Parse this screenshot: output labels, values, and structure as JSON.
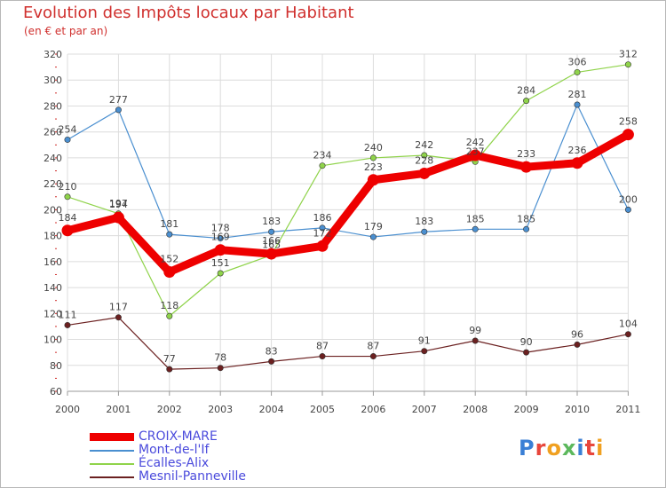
{
  "header": {
    "title": "Evolution des Impôts locaux par Habitant",
    "subtitle": "(en € et par an)"
  },
  "logo": {
    "text": "Proxiti",
    "colors": [
      "#3a7fd5",
      "#e8463c",
      "#f0a020",
      "#5cb85c",
      "#3a7fd5",
      "#e8463c",
      "#f0a020"
    ]
  },
  "chart_data": {
    "type": "line",
    "title": "Evolution des Impôts locaux par Habitant",
    "subtitle": "(en € et par an)",
    "xlabel": "",
    "ylabel": "",
    "x": [
      "2000",
      "2001",
      "2002",
      "2003",
      "2004",
      "2005",
      "2006",
      "2007",
      "2008",
      "2009",
      "2010",
      "2011"
    ],
    "ylim": [
      60,
      320
    ],
    "yticks": [
      60,
      80,
      100,
      120,
      140,
      160,
      180,
      200,
      220,
      240,
      260,
      280,
      300,
      320
    ],
    "grid": true,
    "legend_position": "bottom-left",
    "series": [
      {
        "name": "Mont-de-l'If",
        "color": "#4a8fd0",
        "style": "thin",
        "values": [
          254,
          277,
          181,
          178,
          183,
          186,
          179,
          183,
          185,
          185,
          281,
          200
        ],
        "labels": [
          "254",
          "277",
          "181",
          "178",
          "183",
          "186",
          "179",
          "183",
          "185",
          "185",
          "281",
          "200"
        ]
      },
      {
        "name": "Écalles-Alix",
        "color": "#8fd34a",
        "style": "thin",
        "values": [
          210,
          197,
          118,
          151,
          165,
          234,
          240,
          242,
          237,
          284,
          306,
          312
        ],
        "labels": [
          "210",
          "197",
          "118",
          "151",
          "165",
          "234",
          "240",
          "242",
          "237",
          "284",
          "306",
          "312"
        ]
      },
      {
        "name": "Mesnil-Panneville",
        "color": "#6b2020",
        "style": "thin",
        "values": [
          111,
          117,
          77,
          78,
          83,
          87,
          87,
          91,
          99,
          90,
          96,
          104
        ],
        "labels": [
          "111",
          "117",
          "77",
          "78",
          "83",
          "87",
          "87",
          "91",
          "99",
          "90",
          "96",
          "104"
        ]
      },
      {
        "name": "CROIX-MARE",
        "color": "#ee0000",
        "style": "thick",
        "values": [
          184,
          194,
          152,
          169,
          166,
          172,
          223,
          228,
          242,
          233,
          236,
          258
        ],
        "labels": [
          "184",
          "194",
          "152",
          "169",
          "166",
          "172",
          "223",
          "228",
          "242",
          "233",
          "236",
          "258"
        ]
      }
    ],
    "legend": [
      "CROIX-MARE",
      "Mont-de-l'If",
      "Écalles-Alix",
      "Mesnil-Panneville"
    ]
  }
}
